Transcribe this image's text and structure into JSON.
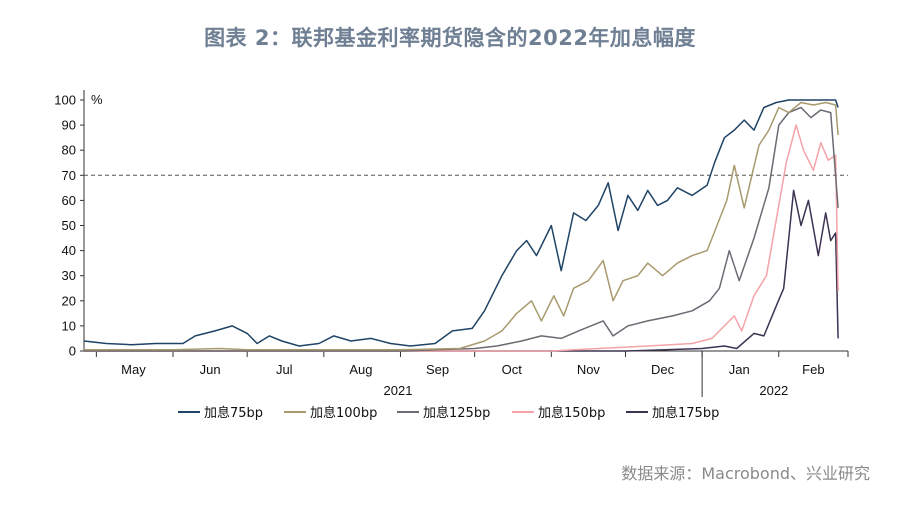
{
  "title": "图表 2：联邦基金利率期货隐含的2022年加息幅度",
  "source": "数据来源：Macrobond、兴业研究",
  "colors": {
    "s75": "#1f4466",
    "s100": "#a89a6e",
    "s125": "#6c6a72",
    "s150": "#f4a3a8",
    "s175": "#3d3352",
    "ref": "#555555"
  },
  "chart_data": {
    "type": "line",
    "ylabel_unit": "%",
    "ylim": [
      0,
      100
    ],
    "yticks": [
      0,
      10,
      20,
      30,
      40,
      50,
      60,
      70,
      80,
      90,
      100
    ],
    "reference_line": 70,
    "months": [
      "May",
      "Jun",
      "Jul",
      "Aug",
      "Sep",
      "Oct",
      "Nov",
      "Dec",
      "Jan",
      "Feb"
    ],
    "years": [
      "2021",
      "2022"
    ],
    "x_range": [
      "2021-04-26",
      "2022-02-25"
    ],
    "legend_position": "bottom",
    "series": [
      {
        "name": "加息75bp",
        "key": "s75",
        "points": [
          [
            "2021-04-26",
            4
          ],
          [
            "2021-05-05",
            3
          ],
          [
            "2021-05-15",
            2.5
          ],
          [
            "2021-05-25",
            3
          ],
          [
            "2021-06-05",
            3
          ],
          [
            "2021-06-10",
            6
          ],
          [
            "2021-06-18",
            8
          ],
          [
            "2021-06-25",
            10
          ],
          [
            "2021-07-01",
            7
          ],
          [
            "2021-07-05",
            3
          ],
          [
            "2021-07-10",
            6
          ],
          [
            "2021-07-15",
            4
          ],
          [
            "2021-07-22",
            2
          ],
          [
            "2021-07-30",
            3
          ],
          [
            "2021-08-05",
            6
          ],
          [
            "2021-08-12",
            4
          ],
          [
            "2021-08-20",
            5
          ],
          [
            "2021-08-28",
            3
          ],
          [
            "2021-09-05",
            2
          ],
          [
            "2021-09-15",
            3
          ],
          [
            "2021-09-22",
            8
          ],
          [
            "2021-09-30",
            9
          ],
          [
            "2021-10-05",
            16
          ],
          [
            "2021-10-12",
            30
          ],
          [
            "2021-10-18",
            40
          ],
          [
            "2021-10-22",
            44
          ],
          [
            "2021-10-26",
            38
          ],
          [
            "2021-11-01",
            50
          ],
          [
            "2021-11-05",
            32
          ],
          [
            "2021-11-10",
            55
          ],
          [
            "2021-11-15",
            52
          ],
          [
            "2021-11-20",
            58
          ],
          [
            "2021-11-24",
            67
          ],
          [
            "2021-11-28",
            48
          ],
          [
            "2021-12-02",
            62
          ],
          [
            "2021-12-06",
            56
          ],
          [
            "2021-12-10",
            64
          ],
          [
            "2021-12-14",
            58
          ],
          [
            "2021-12-18",
            60
          ],
          [
            "2021-12-22",
            65
          ],
          [
            "2021-12-28",
            62
          ],
          [
            "2022-01-03",
            66
          ],
          [
            "2022-01-06",
            75
          ],
          [
            "2022-01-10",
            85
          ],
          [
            "2022-01-14",
            88
          ],
          [
            "2022-01-18",
            92
          ],
          [
            "2022-01-22",
            88
          ],
          [
            "2022-01-26",
            97
          ],
          [
            "2022-01-31",
            99
          ],
          [
            "2022-02-05",
            100
          ],
          [
            "2022-02-10",
            100
          ],
          [
            "2022-02-15",
            100
          ],
          [
            "2022-02-20",
            100
          ],
          [
            "2022-02-24",
            100
          ],
          [
            "2022-02-25",
            97
          ]
        ]
      },
      {
        "name": "加息100bp",
        "key": "s100",
        "points": [
          [
            "2021-04-26",
            0.5
          ],
          [
            "2021-06-01",
            0.5
          ],
          [
            "2021-06-20",
            1
          ],
          [
            "2021-07-01",
            0.5
          ],
          [
            "2021-08-01",
            0.5
          ],
          [
            "2021-09-01",
            0.5
          ],
          [
            "2021-09-25",
            1
          ],
          [
            "2021-10-05",
            4
          ],
          [
            "2021-10-12",
            8
          ],
          [
            "2021-10-18",
            15
          ],
          [
            "2021-10-24",
            20
          ],
          [
            "2021-10-28",
            12
          ],
          [
            "2021-11-02",
            22
          ],
          [
            "2021-11-06",
            14
          ],
          [
            "2021-11-10",
            25
          ],
          [
            "2021-11-16",
            28
          ],
          [
            "2021-11-22",
            36
          ],
          [
            "2021-11-26",
            20
          ],
          [
            "2021-11-30",
            28
          ],
          [
            "2021-12-06",
            30
          ],
          [
            "2021-12-10",
            35
          ],
          [
            "2021-12-16",
            30
          ],
          [
            "2021-12-22",
            35
          ],
          [
            "2021-12-28",
            38
          ],
          [
            "2022-01-03",
            40
          ],
          [
            "2022-01-07",
            50
          ],
          [
            "2022-01-11",
            60
          ],
          [
            "2022-01-14",
            74
          ],
          [
            "2022-01-18",
            57
          ],
          [
            "2022-01-24",
            82
          ],
          [
            "2022-01-28",
            88
          ],
          [
            "2022-02-01",
            97
          ],
          [
            "2022-02-05",
            95
          ],
          [
            "2022-02-10",
            99
          ],
          [
            "2022-02-15",
            98
          ],
          [
            "2022-02-20",
            99
          ],
          [
            "2022-02-24",
            98
          ],
          [
            "2022-02-25",
            86
          ]
        ]
      },
      {
        "name": "加息125bp",
        "key": "s125",
        "points": [
          [
            "2021-04-26",
            0
          ],
          [
            "2021-09-01",
            0
          ],
          [
            "2021-10-01",
            1
          ],
          [
            "2021-10-10",
            2
          ],
          [
            "2021-10-20",
            4
          ],
          [
            "2021-10-28",
            6
          ],
          [
            "2021-11-05",
            5
          ],
          [
            "2021-11-12",
            8
          ],
          [
            "2021-11-22",
            12
          ],
          [
            "2021-11-26",
            6
          ],
          [
            "2021-12-02",
            10
          ],
          [
            "2021-12-10",
            12
          ],
          [
            "2021-12-20",
            14
          ],
          [
            "2021-12-28",
            16
          ],
          [
            "2022-01-04",
            20
          ],
          [
            "2022-01-08",
            25
          ],
          [
            "2022-01-12",
            40
          ],
          [
            "2022-01-16",
            28
          ],
          [
            "2022-01-22",
            45
          ],
          [
            "2022-01-28",
            65
          ],
          [
            "2022-02-01",
            90
          ],
          [
            "2022-02-05",
            95
          ],
          [
            "2022-02-10",
            97
          ],
          [
            "2022-02-14",
            93
          ],
          [
            "2022-02-18",
            96
          ],
          [
            "2022-02-22",
            95
          ],
          [
            "2022-02-25",
            57
          ]
        ]
      },
      {
        "name": "加息150bp",
        "key": "s150",
        "points": [
          [
            "2021-04-26",
            0
          ],
          [
            "2021-11-01",
            0
          ],
          [
            "2021-11-20",
            1
          ],
          [
            "2021-12-10",
            2
          ],
          [
            "2021-12-28",
            3
          ],
          [
            "2022-01-05",
            5
          ],
          [
            "2022-01-10",
            10
          ],
          [
            "2022-01-14",
            14
          ],
          [
            "2022-01-17",
            8
          ],
          [
            "2022-01-22",
            22
          ],
          [
            "2022-01-27",
            30
          ],
          [
            "2022-02-01",
            58
          ],
          [
            "2022-02-04",
            75
          ],
          [
            "2022-02-08",
            90
          ],
          [
            "2022-02-11",
            80
          ],
          [
            "2022-02-15",
            72
          ],
          [
            "2022-02-18",
            83
          ],
          [
            "2022-02-21",
            76
          ],
          [
            "2022-02-24",
            78
          ],
          [
            "2022-02-25",
            24
          ]
        ]
      },
      {
        "name": "加息175bp",
        "key": "s175",
        "points": [
          [
            "2021-04-26",
            0
          ],
          [
            "2021-12-01",
            0
          ],
          [
            "2022-01-01",
            1
          ],
          [
            "2022-01-10",
            2
          ],
          [
            "2022-01-15",
            1
          ],
          [
            "2022-01-22",
            7
          ],
          [
            "2022-01-26",
            6
          ],
          [
            "2022-01-31",
            18
          ],
          [
            "2022-02-03",
            25
          ],
          [
            "2022-02-07",
            64
          ],
          [
            "2022-02-10",
            50
          ],
          [
            "2022-02-13",
            60
          ],
          [
            "2022-02-17",
            38
          ],
          [
            "2022-02-20",
            55
          ],
          [
            "2022-02-22",
            44
          ],
          [
            "2022-02-24",
            47
          ],
          [
            "2022-02-25",
            5
          ]
        ]
      }
    ]
  }
}
